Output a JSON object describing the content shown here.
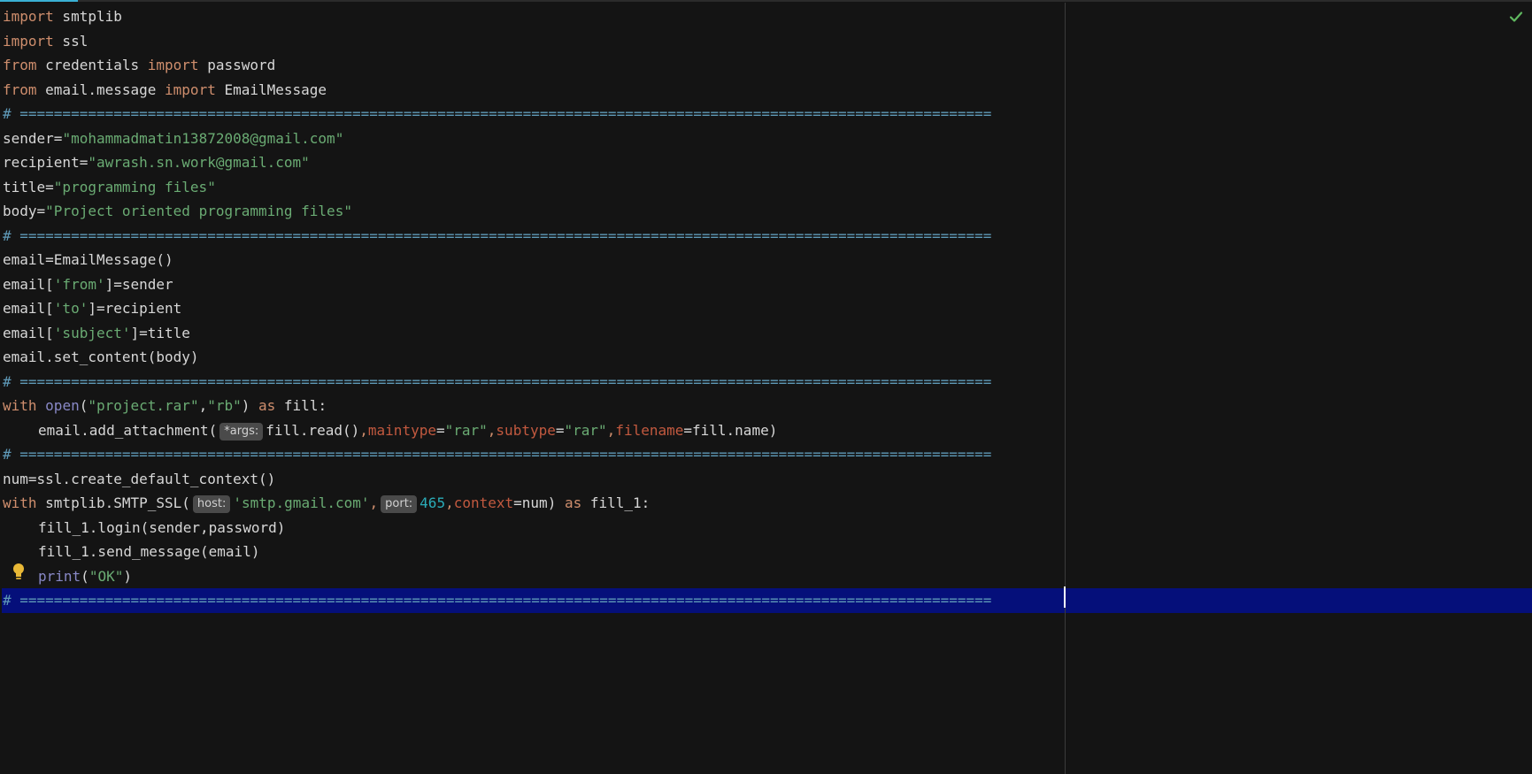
{
  "colors": {
    "background": "#141414",
    "keyword": "#cf8e6d",
    "string": "#6aab73",
    "comment": "#5f9ab8",
    "builtin": "#8888c6",
    "param_name": "#c2593f",
    "number": "#2aacb8",
    "current_line": "#050f7a",
    "accent": "#3ab0d4",
    "status_ok": "#5fb85f"
  },
  "icons": {
    "inspection_status": "checkmark-icon",
    "intention_action": "lightbulb-icon"
  },
  "separator": "# ==================================================================================================================",
  "code": {
    "l1": {
      "kw": "import",
      "rest": " smtplib"
    },
    "l2": {
      "kw": "import",
      "rest": " ssl"
    },
    "l3": {
      "kw1": "from",
      "mod": " credentials ",
      "kw2": "import",
      "rest": " password"
    },
    "l4": {
      "kw1": "from",
      "mod": " email.message ",
      "kw2": "import",
      "rest": " EmailMessage"
    },
    "l6": {
      "name": "sender=",
      "value": "\"mohammadmatin13872008@gmail.com\""
    },
    "l7": {
      "name": "recipient=",
      "value": "\"awrash.sn.work@gmail.com\""
    },
    "l8": {
      "name": "title=",
      "value": "\"programming files\""
    },
    "l9": {
      "name": "body=",
      "value": "\"Project oriented programming files\""
    },
    "l11": "email=EmailMessage()",
    "l12": {
      "pre": "email[",
      "key": "'from'",
      "post": "]=sender"
    },
    "l13": {
      "pre": "email[",
      "key": "'to'",
      "post": "]=recipient"
    },
    "l14": {
      "pre": "email[",
      "key": "'subject'",
      "post": "]=title"
    },
    "l15": "email.set_content(body)",
    "l17": {
      "kw": "with",
      "builtin": "open",
      "paren": "(",
      "arg1": "\"project.rar\"",
      "comma": ",",
      "arg2": "\"rb\"",
      "close": ") ",
      "kw_as": "as",
      "target": " fill:"
    },
    "l18": {
      "call": "email.add_attachment(",
      "hint": "*args:",
      "arg": "fill.read()",
      "c1": ",",
      "p1": "maintype",
      "eq1": "=",
      "v1": "\"rar\"",
      "c2": ",",
      "p2": "subtype",
      "eq2": "=",
      "v2": "\"rar\"",
      "c3": ",",
      "p3": "filename",
      "tail": "=fill.name)"
    },
    "l20": "num=ssl.create_default_context()",
    "l21": {
      "kw": "with",
      "call": " smtplib.SMTP_SSL(",
      "hint1": "host:",
      "host": "'smtp.gmail.com'",
      "c1": ",",
      "hint2": "port:",
      "port": "465",
      "c2": ",",
      "p": "context",
      "tail": "=num) ",
      "kw_as": "as",
      "target": " fill_1:"
    },
    "l22": "fill_1.login(sender,password)",
    "l23": "fill_1.send_message(email)",
    "l24": {
      "builtin": "print",
      "open": "(",
      "value": "\"OK\"",
      "close": ")"
    }
  }
}
